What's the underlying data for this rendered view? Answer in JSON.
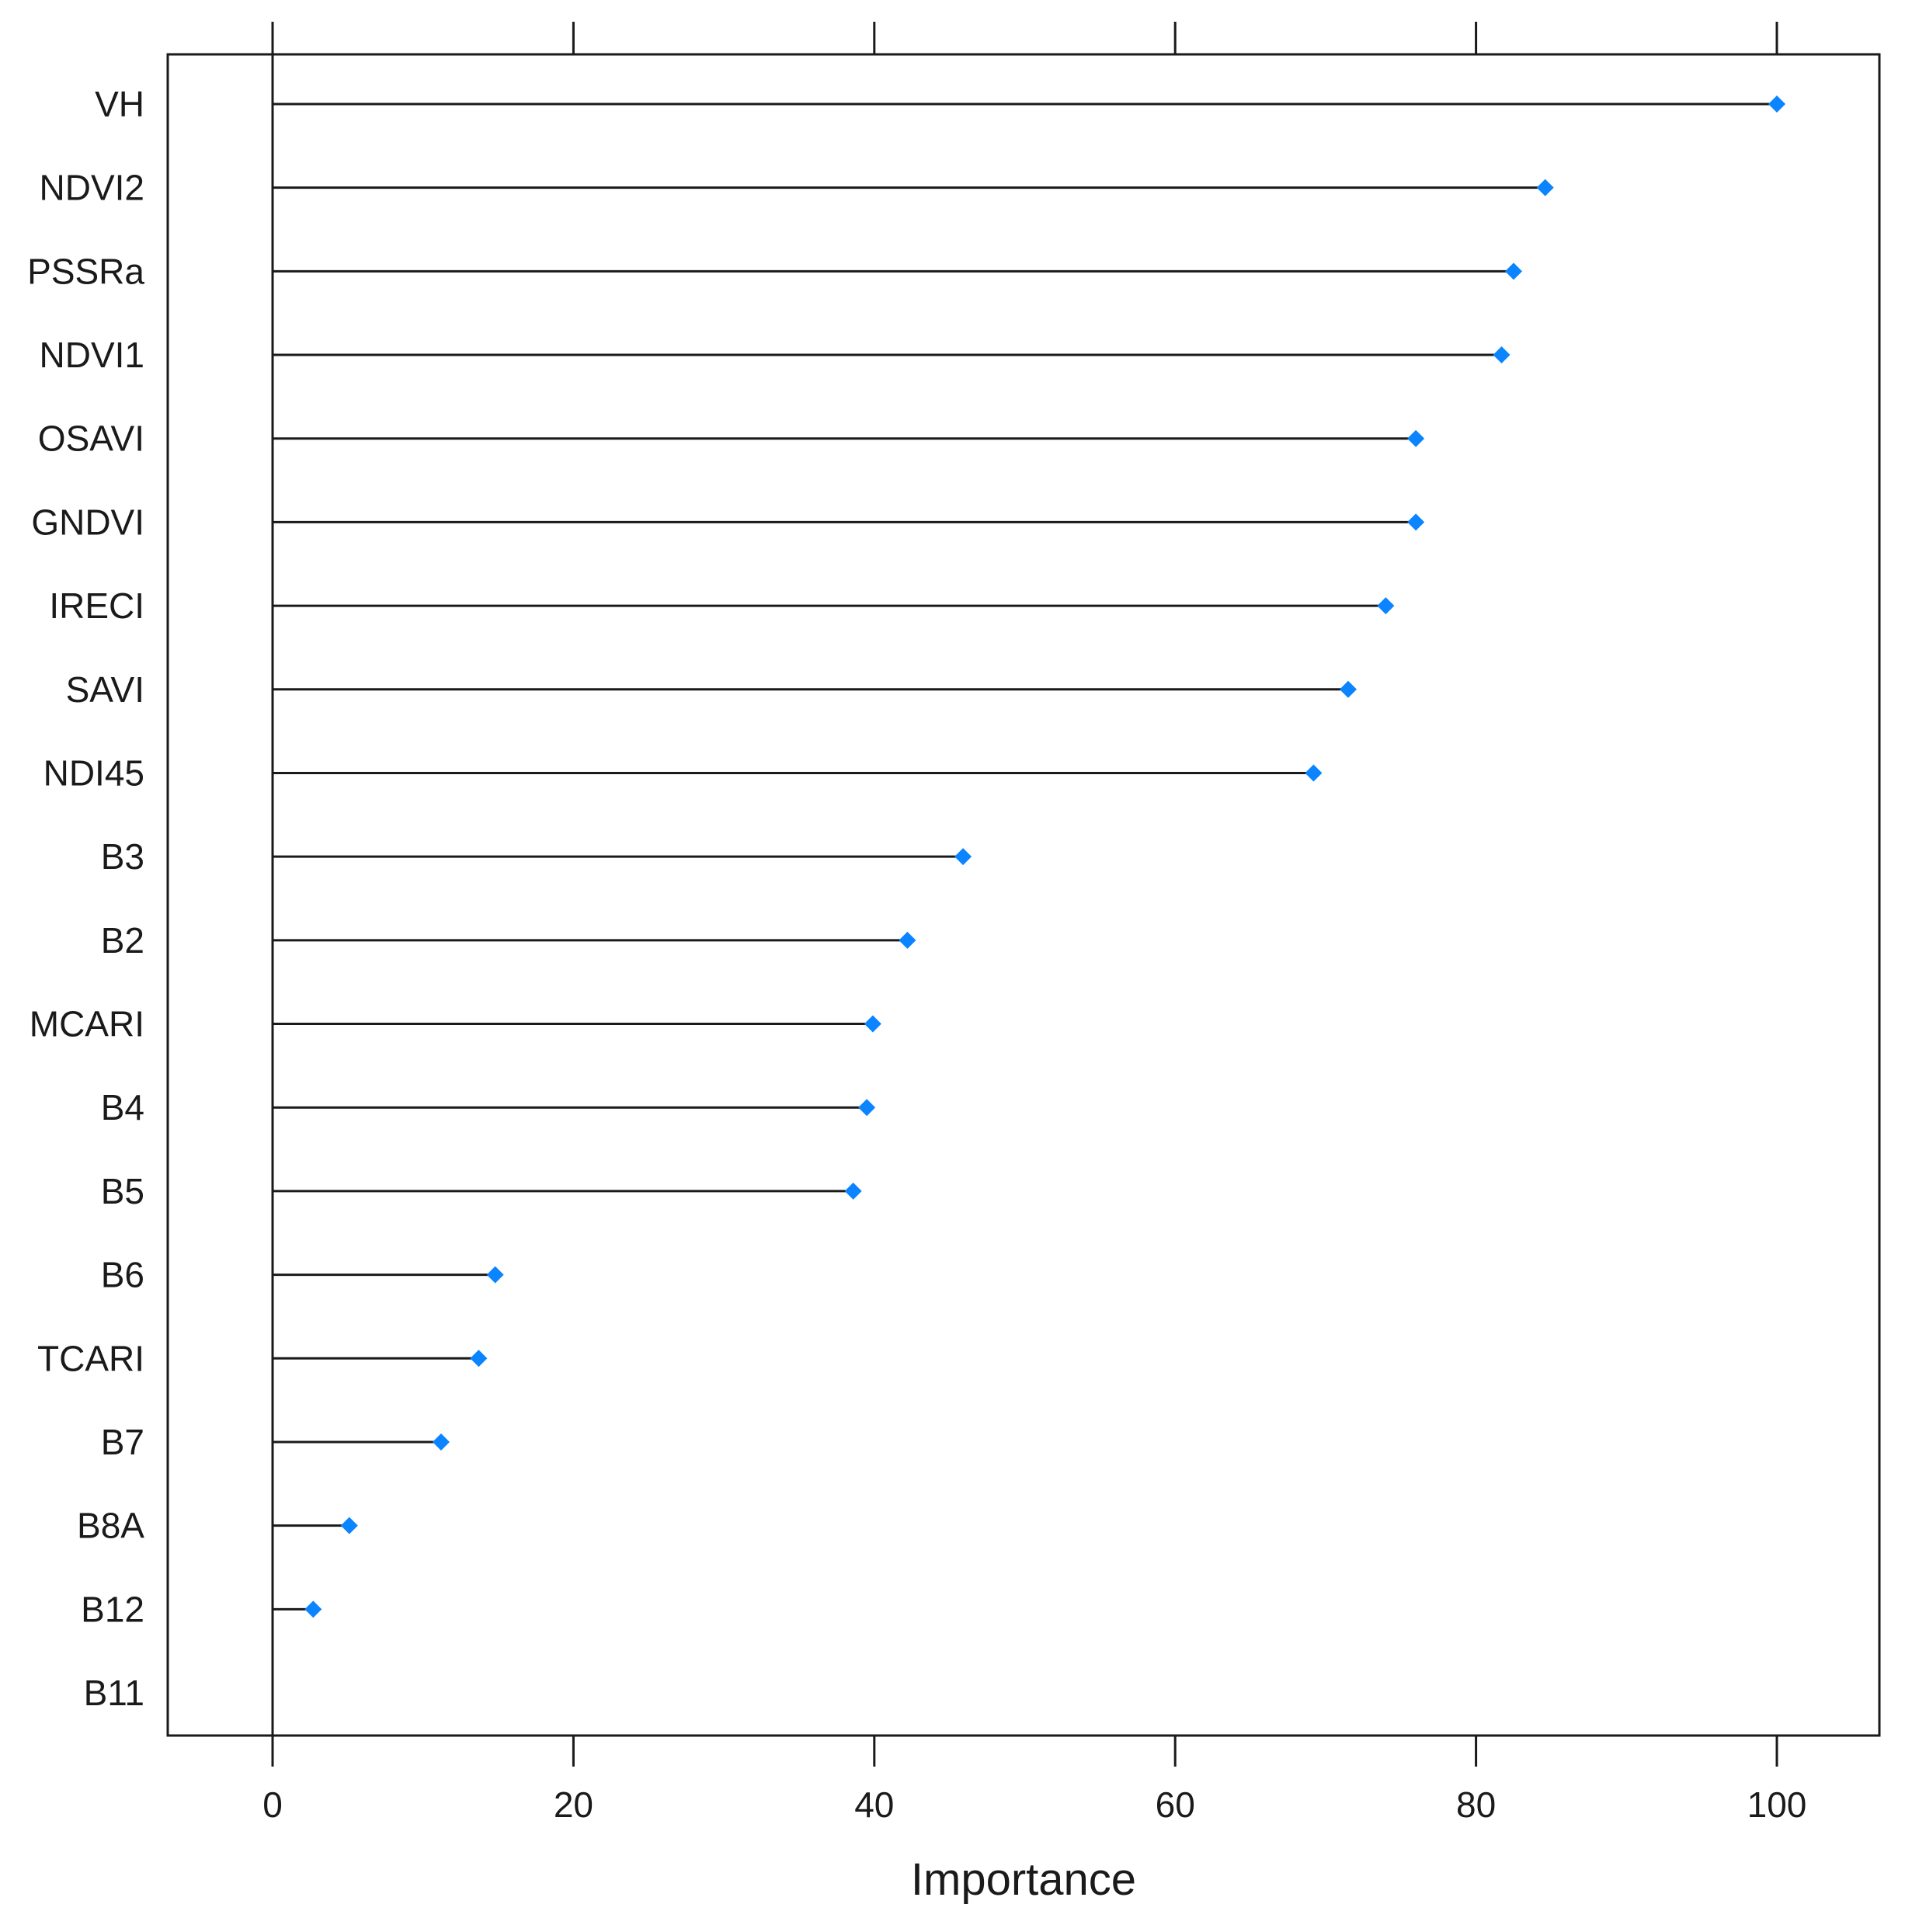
{
  "chart_data": {
    "type": "dot",
    "title": "",
    "xlabel": "Importance",
    "ylabel": "",
    "xlim": [
      -7,
      107
    ],
    "xticks": [
      0,
      20,
      40,
      60,
      80,
      100
    ],
    "grid": false,
    "legend": "none",
    "marker_color": "#0a84ff",
    "line_color": "#1a1a1a",
    "categories": [
      "VH",
      "NDVI2",
      "PSSRa",
      "NDVI1",
      "OSAVI",
      "GNDVI",
      "IRECI",
      "SAVI",
      "NDI45",
      "B3",
      "B2",
      "MCARI",
      "B4",
      "B5",
      "B6",
      "TCARI",
      "B7",
      "B8A",
      "B12",
      "B11"
    ],
    "values": [
      100,
      84.6,
      82.5,
      81.7,
      76.0,
      76.0,
      74.0,
      71.5,
      69.2,
      45.9,
      42.2,
      39.9,
      39.5,
      38.6,
      14.8,
      13.7,
      11.2,
      5.1,
      2.7,
      0
    ]
  }
}
